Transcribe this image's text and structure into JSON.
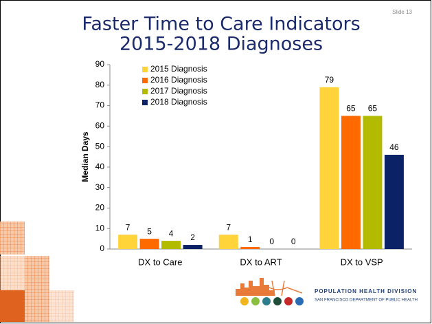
{
  "chart_data": {
    "type": "bar",
    "title": "Faster Time to Care Indicators",
    "subtitle": "2015-2018 Diagnoses",
    "y_label": "Median Days",
    "categories": [
      "DX to Care",
      "DX to ART",
      "DX to VSP"
    ],
    "series": [
      {
        "name": "2015 Diagnosis",
        "color": "#ffd43b",
        "values": [
          7,
          7,
          79
        ]
      },
      {
        "name": "2016 Diagnosis",
        "color": "#ff6a00",
        "values": [
          5,
          1,
          65
        ]
      },
      {
        "name": "2017 Diagnosis",
        "color": "#b3bb00",
        "values": [
          4,
          0,
          65
        ]
      },
      {
        "name": "2018 Diagnosis",
        "color": "#0c2266",
        "values": [
          2,
          0,
          46
        ]
      }
    ],
    "ylim": [
      0,
      90
    ],
    "yticks": [
      0,
      10,
      20,
      30,
      40,
      50,
      60,
      70,
      80,
      90
    ],
    "grid": false,
    "legend": "top-left"
  },
  "slide_number": "Slide 13",
  "logo": {
    "name": "POPULATION HEALTH DIVISION",
    "department": "SAN FRANCISCO DEPARTMENT OF PUBLIC HEALTH"
  }
}
